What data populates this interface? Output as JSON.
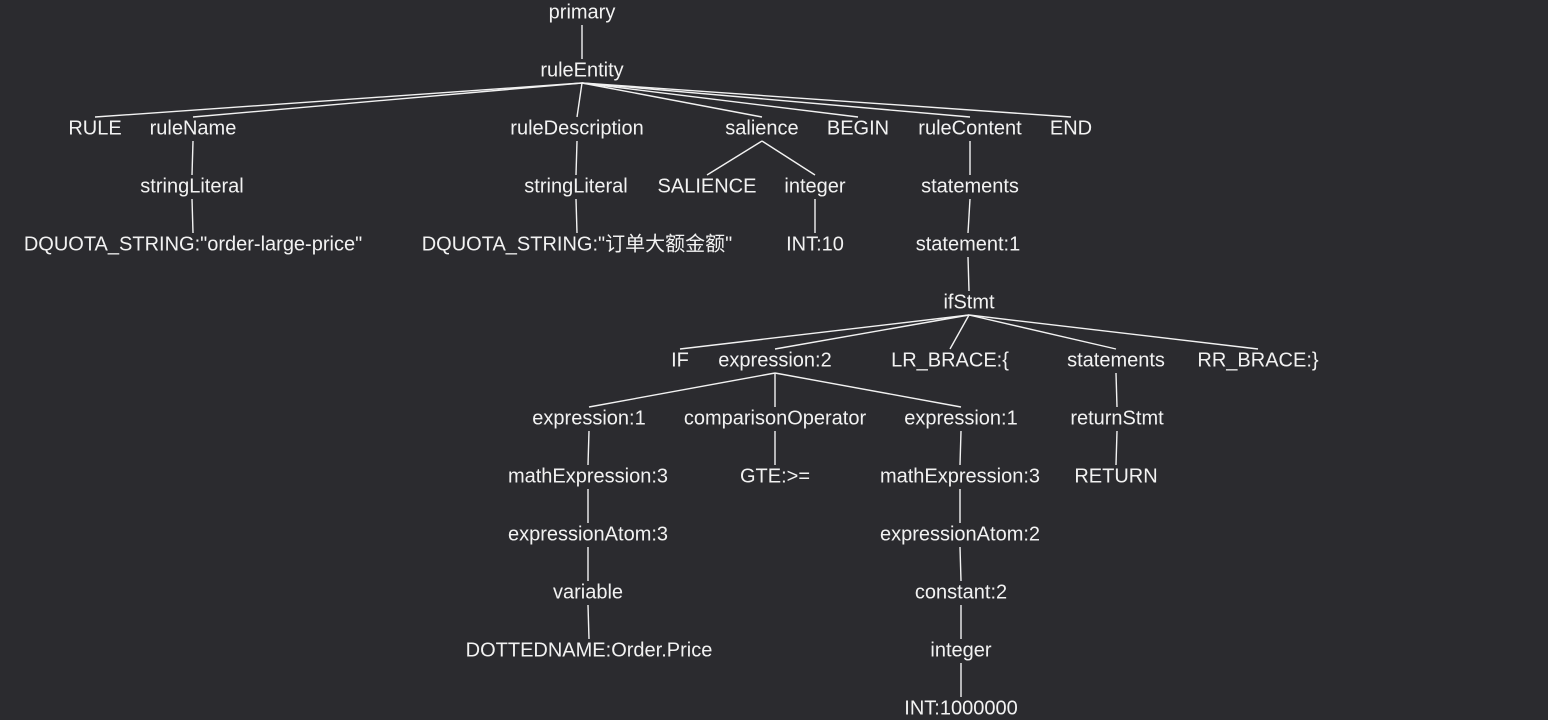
{
  "tree": {
    "label": "primary",
    "children": [
      {
        "label": "ruleEntity",
        "children": [
          {
            "label": "RULE"
          },
          {
            "label": "ruleName",
            "children": [
              {
                "label": "stringLiteral",
                "children": [
                  {
                    "label": "DQUOTA_STRING:\"order-large-price\""
                  }
                ]
              }
            ]
          },
          {
            "label": "ruleDescription",
            "children": [
              {
                "label": "stringLiteral",
                "children": [
                  {
                    "label": "DQUOTA_STRING:\"订单大额金额\""
                  }
                ]
              }
            ]
          },
          {
            "label": "salience",
            "children": [
              {
                "label": "SALIENCE"
              },
              {
                "label": "integer",
                "children": [
                  {
                    "label": "INT:10"
                  }
                ]
              }
            ]
          },
          {
            "label": "BEGIN"
          },
          {
            "label": "ruleContent",
            "children": [
              {
                "label": "statements",
                "children": [
                  {
                    "label": "statement:1",
                    "children": [
                      {
                        "label": "ifStmt",
                        "children": [
                          {
                            "label": "IF"
                          },
                          {
                            "label": "expression:2",
                            "children": [
                              {
                                "label": "expression:1",
                                "children": [
                                  {
                                    "label": "mathExpression:3",
                                    "children": [
                                      {
                                        "label": "expressionAtom:3",
                                        "children": [
                                          {
                                            "label": "variable",
                                            "children": [
                                              {
                                                "label": "DOTTEDNAME:Order.Price"
                                              }
                                            ]
                                          }
                                        ]
                                      }
                                    ]
                                  }
                                ]
                              },
                              {
                                "label": "comparisonOperator",
                                "children": [
                                  {
                                    "label": "GTE:>="
                                  }
                                ]
                              },
                              {
                                "label": "expression:1",
                                "children": [
                                  {
                                    "label": "mathExpression:3",
                                    "children": [
                                      {
                                        "label": "expressionAtom:2",
                                        "children": [
                                          {
                                            "label": "constant:2",
                                            "children": [
                                              {
                                                "label": "integer",
                                                "children": [
                                                  {
                                                    "label": "INT:1000000"
                                                  }
                                                ]
                                              }
                                            ]
                                          }
                                        ]
                                      }
                                    ]
                                  }
                                ]
                              }
                            ]
                          },
                          {
                            "label": "LR_BRACE:{"
                          },
                          {
                            "label": "statements",
                            "children": [
                              {
                                "label": "returnStmt",
                                "children": [
                                  {
                                    "label": "RETURN"
                                  }
                                ]
                              }
                            ]
                          },
                          {
                            "label": "RR_BRACE:}"
                          }
                        ]
                      }
                    ]
                  }
                ]
              }
            ]
          },
          {
            "label": "END"
          }
        ]
      }
    ]
  }
}
